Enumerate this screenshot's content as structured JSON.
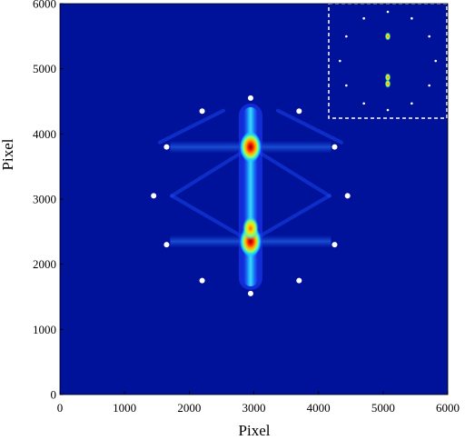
{
  "chart_data": {
    "type": "heatmap",
    "title": "",
    "xlabel": "Pixel",
    "ylabel": "Pixel",
    "xlim": [
      0,
      6000
    ],
    "ylim": [
      0,
      6000
    ],
    "x_ticks": [
      "0",
      "1000",
      "2000",
      "3000",
      "4000",
      "5000",
      "6000"
    ],
    "y_ticks": [
      "0",
      "1000",
      "2000",
      "3000",
      "4000",
      "5000",
      "6000"
    ],
    "colormap": "jet",
    "background_color": "#00129a",
    "grid": false,
    "hotspots": [
      {
        "x": 2950,
        "y": 3800,
        "intensity": 1.0
      },
      {
        "x": 2950,
        "y": 2350,
        "intensity": 1.0
      },
      {
        "x": 2950,
        "y": 2550,
        "intensity": 0.8
      }
    ],
    "markers": [
      {
        "x": 2950,
        "y": 4550
      },
      {
        "x": 2200,
        "y": 4350
      },
      {
        "x": 3700,
        "y": 4350
      },
      {
        "x": 1650,
        "y": 3800
      },
      {
        "x": 4250,
        "y": 3800
      },
      {
        "x": 1450,
        "y": 3050
      },
      {
        "x": 4450,
        "y": 3050
      },
      {
        "x": 1650,
        "y": 2300
      },
      {
        "x": 4250,
        "y": 2300
      },
      {
        "x": 2200,
        "y": 1750
      },
      {
        "x": 3700,
        "y": 1750
      },
      {
        "x": 2950,
        "y": 1550
      }
    ],
    "inset": {
      "border": "dashed white",
      "location": "top-right"
    }
  }
}
